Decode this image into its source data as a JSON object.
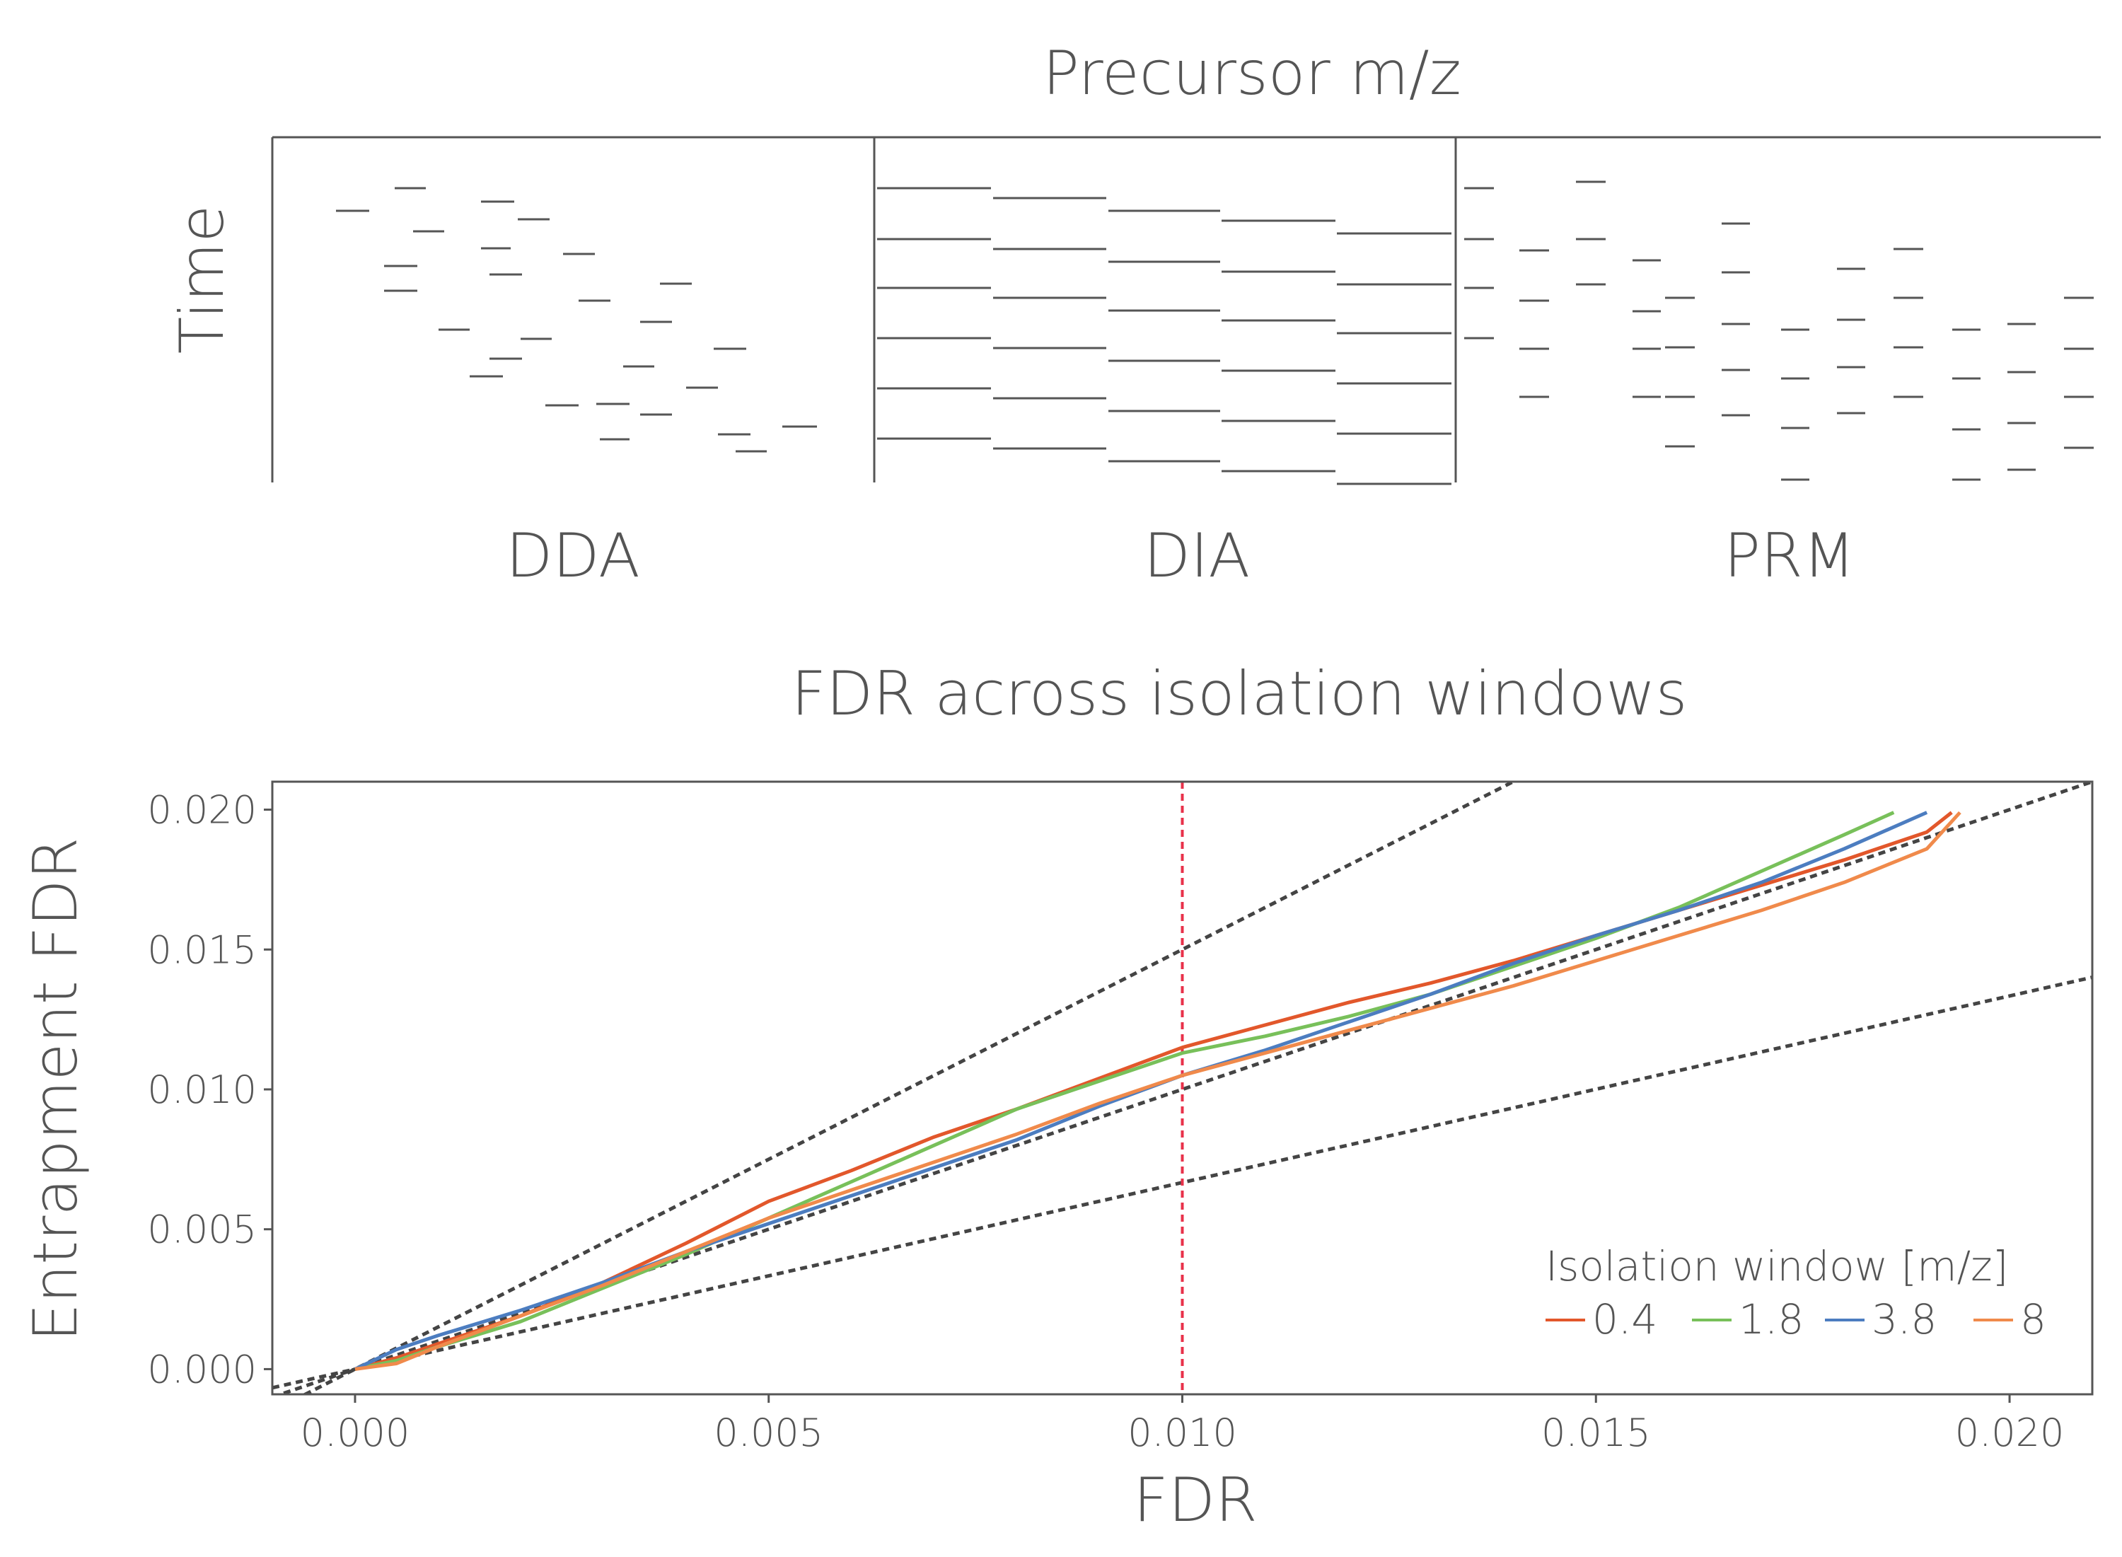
{
  "schematic": {
    "title": "Precursor m/z",
    "ylabel": "Time",
    "panels": [
      {
        "label": "DDA"
      },
      {
        "label": "DIA"
      },
      {
        "label": "PRM"
      }
    ]
  },
  "chart_data": {
    "type": "line",
    "title": "FDR across isolation windows",
    "xlabel": "FDR",
    "ylabel": "Entrapment FDR",
    "xlim": [
      -0.001,
      0.021
    ],
    "ylim": [
      -0.0009,
      0.021
    ],
    "xticks": [
      0.0,
      0.005,
      0.01,
      0.015,
      0.02
    ],
    "xtick_labels": [
      "0.000",
      "0.005",
      "0.010",
      "0.015",
      "0.020"
    ],
    "yticks": [
      0.0,
      0.005,
      0.01,
      0.015,
      0.02
    ],
    "ytick_labels": [
      "0.000",
      "0.005",
      "0.010",
      "0.015",
      "0.020"
    ],
    "grid": false,
    "reference_lines": [
      {
        "kind": "slope",
        "slope": 1.5,
        "style": "dashed"
      },
      {
        "kind": "slope",
        "slope": 1.0,
        "style": "dashed"
      },
      {
        "kind": "slope",
        "slope": 0.667,
        "style": "dashed"
      },
      {
        "kind": "vertical",
        "x": 0.01,
        "style": "dashed",
        "color": "#e8314a"
      }
    ],
    "legend": {
      "title": "Isolation window [m/z]",
      "position": "bottom-right"
    },
    "series": [
      {
        "name": "0.4",
        "color": "#e2572b",
        "x": [
          0.0,
          0.0005,
          0.001,
          0.002,
          0.003,
          0.004,
          0.005,
          0.006,
          0.007,
          0.008,
          0.009,
          0.01,
          0.011,
          0.012,
          0.013,
          0.014,
          0.015,
          0.016,
          0.017,
          0.018,
          0.019,
          0.0193
        ],
        "y": [
          0.0,
          0.0004,
          0.0009,
          0.0019,
          0.0031,
          0.0045,
          0.006,
          0.0071,
          0.0083,
          0.0093,
          0.0104,
          0.0115,
          0.0123,
          0.0131,
          0.0138,
          0.0146,
          0.0155,
          0.0164,
          0.0173,
          0.0182,
          0.0192,
          0.0199
        ]
      },
      {
        "name": "1.8",
        "color": "#78c05a",
        "x": [
          0.0,
          0.0005,
          0.001,
          0.002,
          0.003,
          0.004,
          0.005,
          0.006,
          0.007,
          0.008,
          0.009,
          0.01,
          0.011,
          0.012,
          0.013,
          0.014,
          0.015,
          0.016,
          0.017,
          0.018,
          0.0186
        ],
        "y": [
          0.0,
          0.0003,
          0.0008,
          0.0017,
          0.0029,
          0.0041,
          0.0054,
          0.0067,
          0.008,
          0.0093,
          0.0103,
          0.0113,
          0.0119,
          0.0126,
          0.0134,
          0.0144,
          0.0154,
          0.0165,
          0.0178,
          0.0191,
          0.0199
        ]
      },
      {
        "name": "3.8",
        "color": "#4c7dc0",
        "x": [
          0.0,
          0.0005,
          0.001,
          0.002,
          0.003,
          0.004,
          0.005,
          0.006,
          0.007,
          0.008,
          0.009,
          0.01,
          0.011,
          0.012,
          0.013,
          0.014,
          0.015,
          0.016,
          0.017,
          0.018,
          0.019
        ],
        "y": [
          0.0,
          0.0007,
          0.0012,
          0.0021,
          0.0031,
          0.0042,
          0.0052,
          0.0062,
          0.0072,
          0.0082,
          0.0094,
          0.0105,
          0.0114,
          0.0124,
          0.0134,
          0.0145,
          0.0155,
          0.0164,
          0.0174,
          0.0186,
          0.0199
        ]
      },
      {
        "name": "8",
        "color": "#f08a4b",
        "x": [
          0.0,
          0.0005,
          0.001,
          0.002,
          0.003,
          0.004,
          0.005,
          0.006,
          0.007,
          0.008,
          0.009,
          0.01,
          0.011,
          0.012,
          0.013,
          0.014,
          0.015,
          0.016,
          0.017,
          0.018,
          0.019,
          0.0194
        ],
        "y": [
          0.0,
          0.0002,
          0.0008,
          0.0019,
          0.003,
          0.0042,
          0.0054,
          0.0064,
          0.0074,
          0.0084,
          0.0095,
          0.0105,
          0.0113,
          0.0121,
          0.0129,
          0.0137,
          0.0146,
          0.0155,
          0.0164,
          0.0174,
          0.0186,
          0.0199
        ]
      }
    ]
  }
}
